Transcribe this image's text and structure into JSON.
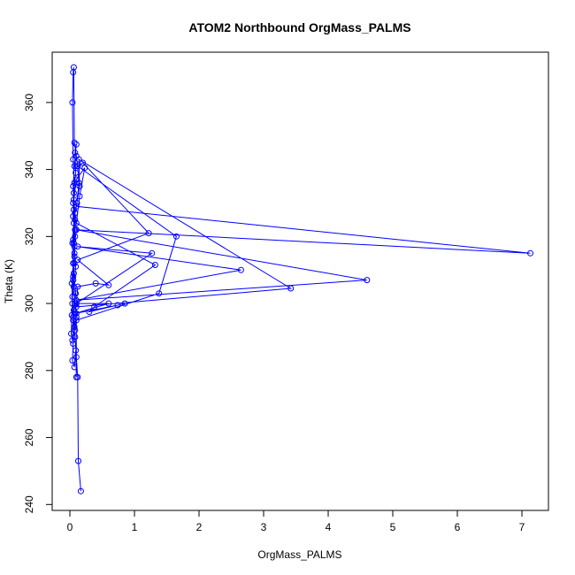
{
  "chart_data": {
    "type": "line",
    "title": "ATOM2 Northbound OrgMass_PALMS",
    "xlabel": "OrgMass_PALMS",
    "ylabel": "Theta (K)",
    "xlim": [
      0,
      7.3
    ],
    "ylim": [
      239,
      372
    ],
    "xticks": [
      0,
      1,
      2,
      3,
      4,
      5,
      6,
      7
    ],
    "yticks": [
      240,
      260,
      280,
      300,
      320,
      340,
      360
    ],
    "grid": false,
    "colors": {
      "series": "#0000ff",
      "axes": "#000000"
    },
    "marker": "open-circle",
    "series": [
      {
        "values": [
          [
            0.17,
            244
          ],
          [
            0.13,
            253
          ],
          [
            0.12,
            278
          ],
          [
            0.1,
            284
          ],
          [
            0.08,
            290
          ],
          [
            0.05,
            296
          ],
          [
            0.04,
            300
          ],
          [
            0.03,
            306
          ],
          [
            0.05,
            312
          ],
          [
            0.04,
            318
          ],
          [
            0.06,
            324
          ],
          [
            0.05,
            330
          ],
          [
            0.07,
            336
          ],
          [
            0.05,
            343
          ],
          [
            0.04,
            360
          ],
          [
            0.05,
            369
          ],
          [
            0.06,
            370.5
          ],
          [
            0.07,
            348
          ],
          [
            0.1,
            344
          ],
          [
            0.12,
            341
          ],
          [
            0.14,
            336
          ],
          [
            0.11,
            330
          ],
          [
            0.08,
            327
          ],
          [
            0.1,
            322
          ],
          [
            0.07,
            317
          ],
          [
            0.09,
            311
          ],
          [
            0.06,
            305
          ],
          [
            0.08,
            300
          ],
          [
            0.1,
            296
          ],
          [
            0.07,
            293
          ],
          [
            0.05,
            288
          ],
          [
            0.04,
            283
          ],
          [
            0.07,
            281
          ],
          [
            0.09,
            286
          ],
          [
            0.1,
            278
          ],
          [
            0.1,
            295
          ],
          [
            1.38,
            303
          ],
          [
            1.65,
            320
          ],
          [
            0.12,
            341
          ],
          [
            0.2,
            342
          ],
          [
            1.22,
            321
          ],
          [
            0.12,
            313
          ],
          [
            0.6,
            305.5
          ],
          [
            0.4,
            306
          ],
          [
            0.12,
            305
          ],
          [
            0.1,
            299
          ],
          [
            3.42,
            304.5
          ],
          [
            0.14,
            343
          ],
          [
            0.15,
            335
          ],
          [
            0.1,
            329
          ],
          [
            7.13,
            315
          ],
          [
            0.1,
            322
          ],
          [
            4.6,
            307
          ],
          [
            0.1,
            301
          ],
          [
            2.65,
            310
          ],
          [
            0.12,
            317
          ],
          [
            1.27,
            315
          ],
          [
            0.1,
            300
          ],
          [
            0.6,
            300
          ],
          [
            0.08,
            297
          ],
          [
            0.74,
            299.5
          ],
          [
            0.85,
            300
          ],
          [
            0.3,
            297.5
          ],
          [
            0.38,
            299
          ],
          [
            1.32,
            311.5
          ],
          [
            0.1,
            324
          ],
          [
            0.15,
            332
          ],
          [
            0.23,
            340.5
          ],
          [
            0.1,
            337
          ],
          [
            0.06,
            331
          ],
          [
            0.05,
            326
          ],
          [
            0.08,
            320
          ],
          [
            0.07,
            315
          ],
          [
            0.06,
            309
          ],
          [
            0.09,
            303
          ],
          [
            0.06,
            298
          ],
          [
            0.08,
            292
          ],
          [
            0.1,
            297
          ],
          [
            0.07,
            302
          ],
          [
            0.05,
            308
          ],
          [
            0.07,
            314
          ],
          [
            0.05,
            319
          ],
          [
            0.08,
            325
          ],
          [
            0.06,
            333
          ],
          [
            0.09,
            339
          ],
          [
            0.08,
            345
          ],
          [
            0.1,
            347.5
          ],
          [
            0.07,
            341
          ],
          [
            0.05,
            335
          ],
          [
            0.06,
            328
          ],
          [
            0.08,
            322
          ],
          [
            0.06,
            318
          ],
          [
            0.07,
            312
          ],
          [
            0.05,
            307
          ],
          [
            0.04,
            302
          ],
          [
            0.03,
            296.5
          ],
          [
            0.02,
            291
          ],
          [
            0.04,
            289
          ],
          [
            0.05,
            295
          ]
        ]
      }
    ]
  }
}
